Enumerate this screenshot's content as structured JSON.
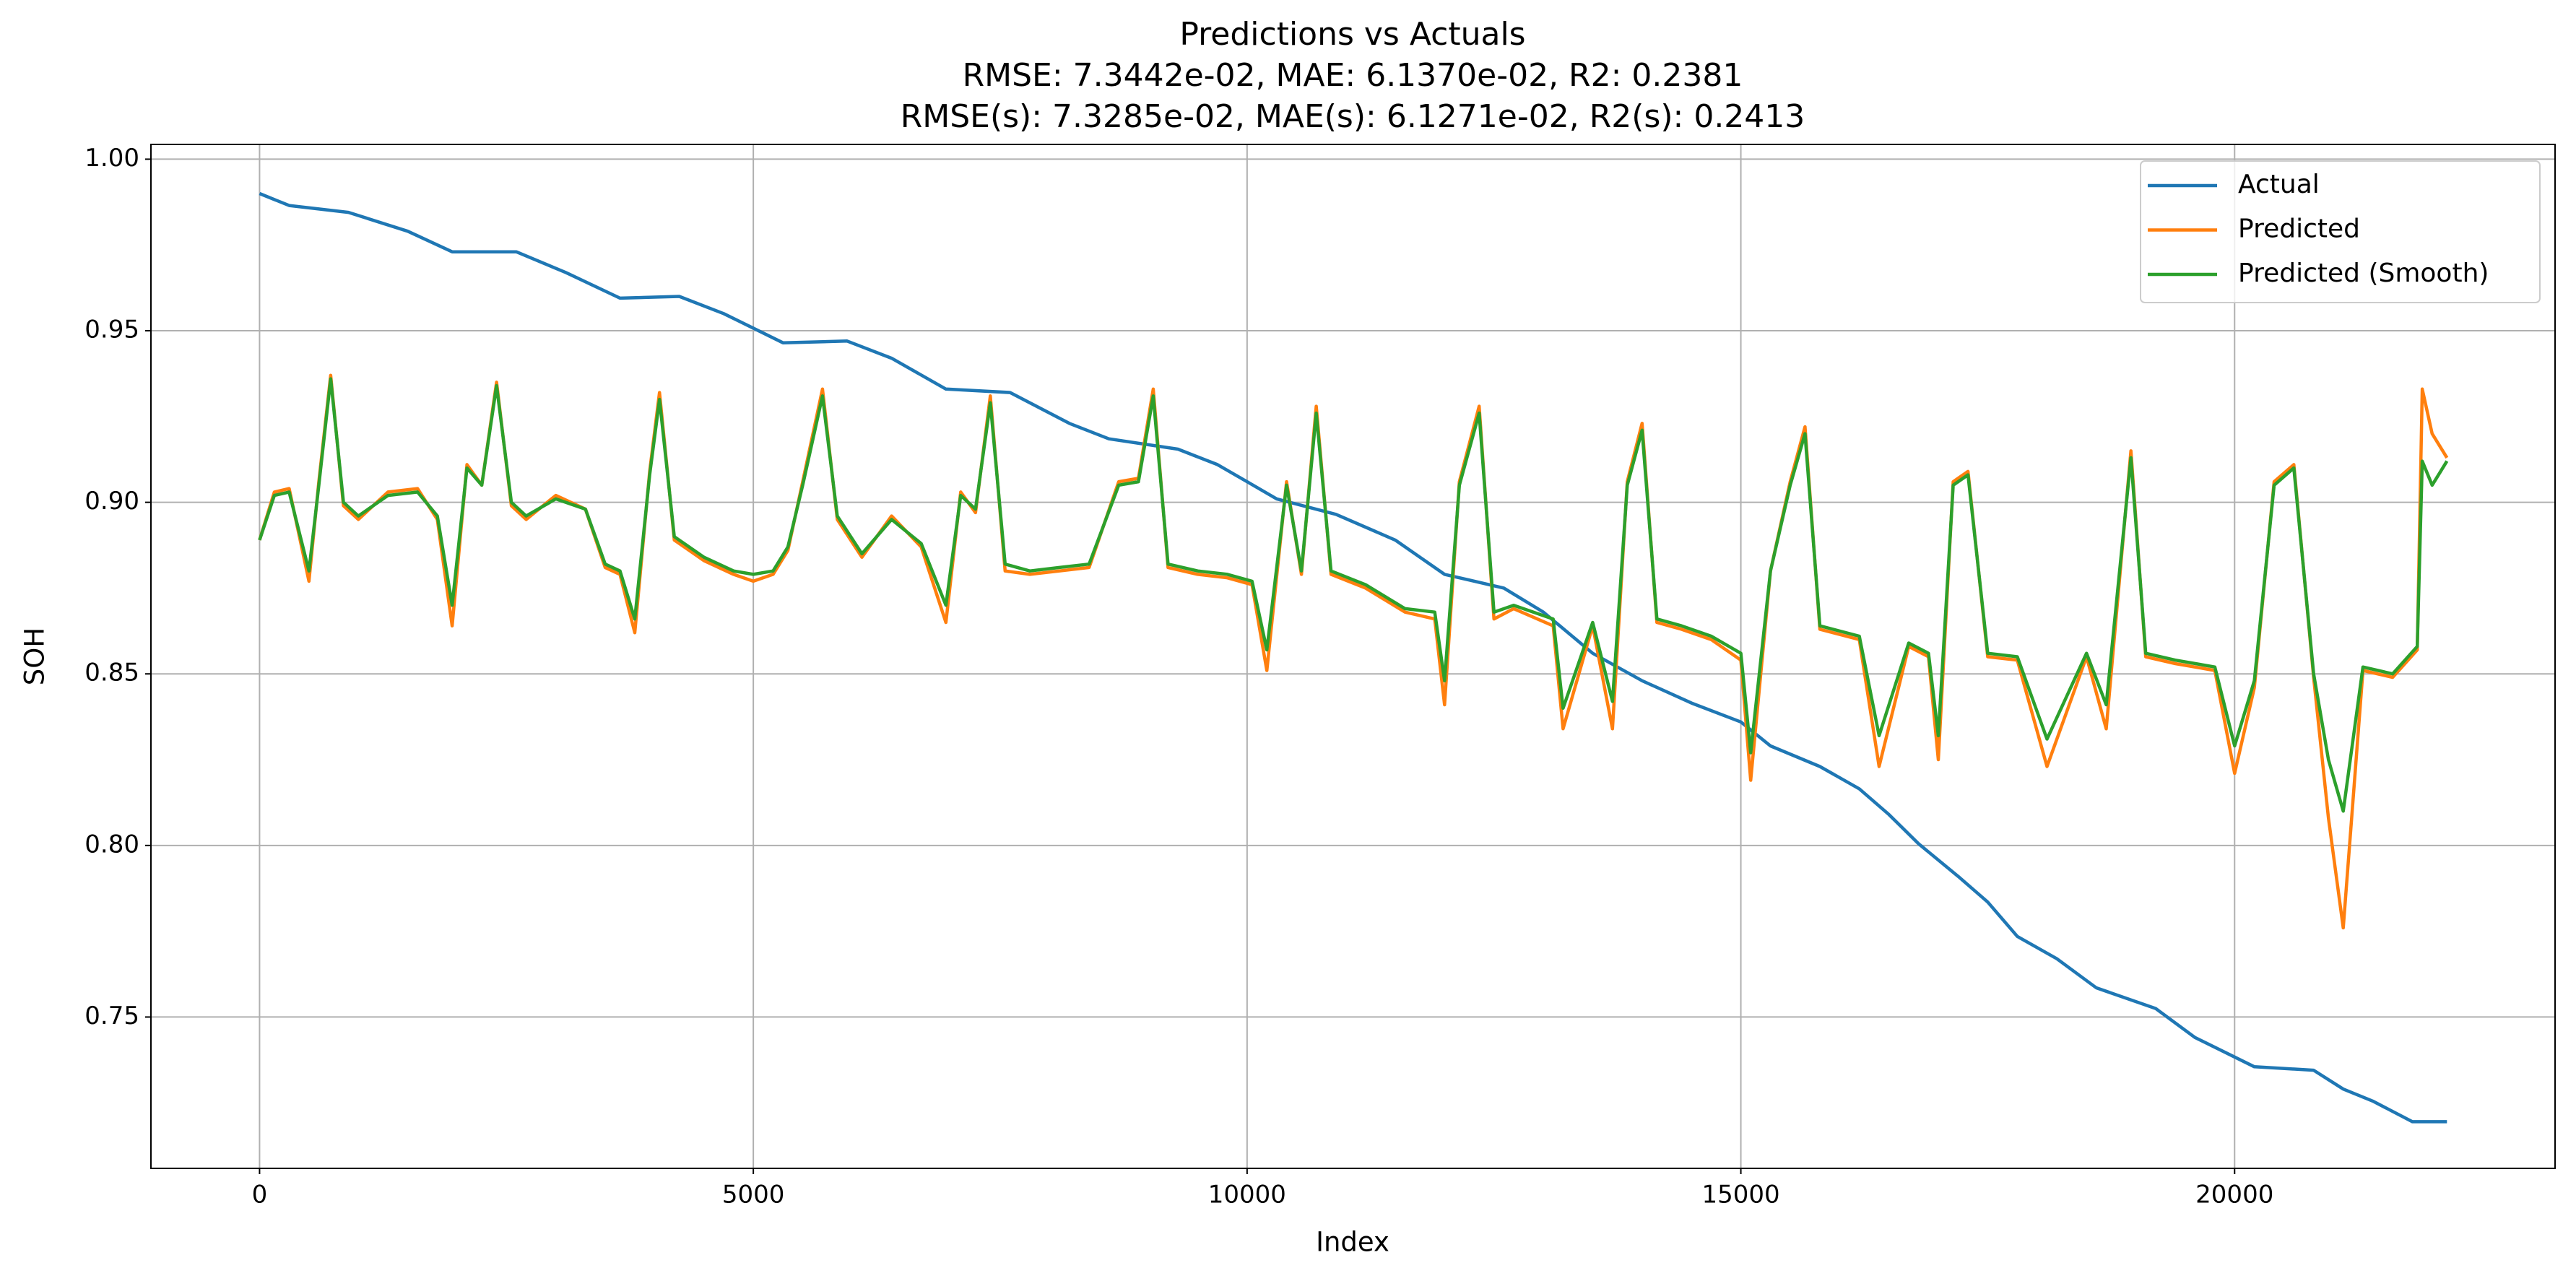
{
  "chart_data": {
    "type": "line",
    "title": "Predictions vs Actuals",
    "subtitle": [
      "RMSE: 7.3442e-02, MAE: 6.1370e-02, R2: 0.2381",
      "RMSE(s): 7.3285e-02, MAE(s): 6.1271e-02, R2(s): 0.2413"
    ],
    "x_label": "Index",
    "y_label": "SOH",
    "xlim": [
      -1100,
      23245
    ],
    "ylim": [
      0.7059,
      1.0043
    ],
    "xticks": [
      0,
      5000,
      10000,
      15000,
      20000
    ],
    "yticks": [
      0.75,
      {
        "value": 0.8,
        "label": "0.80"
      },
      0.85,
      {
        "value": 0.9,
        "label": "0.90"
      },
      0.95,
      {
        "value": 1.0,
        "label": "1.00"
      }
    ],
    "grid": true,
    "legend": "upper right",
    "series": [
      {
        "name": "Actual",
        "color": "#1f77b4",
        "x": [
          0,
          300,
          900,
          1500,
          1950,
          2600,
          3100,
          3650,
          4250,
          4700,
          5300,
          5950,
          6400,
          6950,
          7600,
          8200,
          8600,
          9300,
          9700,
          10000,
          10300,
          10900,
          11500,
          12000,
          12600,
          13000,
          13500,
          14000,
          14500,
          15000,
          15300,
          15800,
          16200,
          16500,
          16800,
          17200,
          17500,
          17800,
          18200,
          18600,
          19200,
          19600,
          20200,
          20800,
          21100,
          21400,
          21800,
          22150
        ],
        "values": [
          0.99,
          0.9865,
          0.9845,
          0.979,
          0.973,
          0.973,
          0.967,
          0.9595,
          0.96,
          0.955,
          0.9465,
          0.947,
          0.942,
          0.933,
          0.932,
          0.923,
          0.9185,
          0.9155,
          0.911,
          0.906,
          0.901,
          0.8965,
          0.889,
          0.879,
          0.875,
          0.868,
          0.856,
          0.848,
          0.8415,
          0.836,
          0.829,
          0.823,
          0.8165,
          0.809,
          0.8005,
          0.791,
          0.7835,
          0.7735,
          0.767,
          0.7585,
          0.7525,
          0.744,
          0.7355,
          0.7345,
          0.729,
          0.7255,
          0.7195,
          0.7195
        ]
      },
      {
        "name": "Predicted",
        "color": "#ff7f0e",
        "x": [
          0,
          150,
          300,
          500,
          600,
          720,
          850,
          1000,
          1300,
          1600,
          1800,
          1950,
          2100,
          2250,
          2400,
          2550,
          2700,
          3000,
          3300,
          3500,
          3650,
          3800,
          3950,
          4050,
          4200,
          4500,
          4800,
          5000,
          5200,
          5350,
          5500,
          5700,
          5850,
          6100,
          6400,
          6700,
          6950,
          7100,
          7250,
          7400,
          7550,
          7800,
          8100,
          8400,
          8700,
          8900,
          9050,
          9200,
          9500,
          9800,
          10050,
          10200,
          10400,
          10550,
          10700,
          10850,
          11200,
          11600,
          11900,
          12000,
          12150,
          12350,
          12500,
          12700,
          13100,
          13200,
          13500,
          13700,
          13850,
          14000,
          14150,
          14400,
          14700,
          15000,
          15100,
          15300,
          15500,
          15650,
          15800,
          16200,
          16400,
          16700,
          16900,
          17000,
          17150,
          17300,
          17500,
          17800,
          18100,
          18500,
          18700,
          18950,
          19100,
          19400,
          19800,
          20000,
          20200,
          20400,
          20600,
          20800,
          20950,
          21100,
          21300,
          21600,
          21850,
          21900,
          22000,
          22150
        ],
        "values": [
          0.889,
          0.903,
          0.904,
          0.877,
          0.906,
          0.937,
          0.899,
          0.895,
          0.903,
          0.904,
          0.895,
          0.864,
          0.911,
          0.905,
          0.935,
          0.899,
          0.895,
          0.902,
          0.898,
          0.881,
          0.879,
          0.862,
          0.909,
          0.932,
          0.889,
          0.883,
          0.879,
          0.877,
          0.879,
          0.886,
          0.906,
          0.933,
          0.895,
          0.884,
          0.896,
          0.887,
          0.865,
          0.903,
          0.897,
          0.931,
          0.88,
          0.879,
          0.88,
          0.881,
          0.906,
          0.907,
          0.933,
          0.881,
          0.879,
          0.878,
          0.876,
          0.851,
          0.906,
          0.879,
          0.928,
          0.879,
          0.875,
          0.868,
          0.866,
          0.841,
          0.906,
          0.928,
          0.866,
          0.869,
          0.864,
          0.834,
          0.864,
          0.834,
          0.906,
          0.923,
          0.865,
          0.863,
          0.86,
          0.854,
          0.819,
          0.88,
          0.906,
          0.922,
          0.863,
          0.86,
          0.823,
          0.858,
          0.855,
          0.825,
          0.906,
          0.909,
          0.855,
          0.854,
          0.823,
          0.855,
          0.834,
          0.915,
          0.855,
          0.853,
          0.851,
          0.821,
          0.846,
          0.906,
          0.911,
          0.849,
          0.808,
          0.776,
          0.851,
          0.849,
          0.857,
          0.933,
          0.92,
          0.913
        ]
      },
      {
        "name": "Predicted (Smooth)",
        "color": "#2ca02c",
        "x": [
          0,
          150,
          300,
          500,
          600,
          720,
          850,
          1000,
          1300,
          1600,
          1800,
          1950,
          2100,
          2250,
          2400,
          2550,
          2700,
          3000,
          3300,
          3500,
          3650,
          3800,
          3950,
          4050,
          4200,
          4500,
          4800,
          5000,
          5200,
          5350,
          5500,
          5700,
          5850,
          6100,
          6400,
          6700,
          6950,
          7100,
          7250,
          7400,
          7550,
          7800,
          8100,
          8400,
          8700,
          8900,
          9050,
          9200,
          9500,
          9800,
          10050,
          10200,
          10400,
          10550,
          10700,
          10850,
          11200,
          11600,
          11900,
          12000,
          12150,
          12350,
          12500,
          12700,
          13100,
          13200,
          13500,
          13700,
          13850,
          14000,
          14150,
          14400,
          14700,
          15000,
          15100,
          15300,
          15500,
          15650,
          15800,
          16200,
          16400,
          16700,
          16900,
          17000,
          17150,
          17300,
          17500,
          17800,
          18100,
          18500,
          18700,
          18950,
          19100,
          19400,
          19800,
          20000,
          20200,
          20400,
          20600,
          20800,
          20950,
          21100,
          21300,
          21600,
          21850,
          21900,
          22000,
          22150
        ],
        "values": [
          0.889,
          0.902,
          0.903,
          0.88,
          0.905,
          0.936,
          0.9,
          0.896,
          0.902,
          0.903,
          0.896,
          0.87,
          0.91,
          0.905,
          0.934,
          0.9,
          0.896,
          0.901,
          0.898,
          0.882,
          0.88,
          0.866,
          0.908,
          0.93,
          0.89,
          0.884,
          0.88,
          0.879,
          0.88,
          0.887,
          0.905,
          0.931,
          0.896,
          0.885,
          0.895,
          0.888,
          0.87,
          0.902,
          0.898,
          0.929,
          0.882,
          0.88,
          0.881,
          0.882,
          0.905,
          0.906,
          0.931,
          0.882,
          0.88,
          0.879,
          0.877,
          0.857,
          0.905,
          0.88,
          0.926,
          0.88,
          0.876,
          0.869,
          0.868,
          0.848,
          0.905,
          0.926,
          0.868,
          0.87,
          0.866,
          0.84,
          0.865,
          0.842,
          0.905,
          0.921,
          0.866,
          0.864,
          0.861,
          0.856,
          0.827,
          0.88,
          0.905,
          0.92,
          0.864,
          0.861,
          0.832,
          0.859,
          0.856,
          0.832,
          0.905,
          0.908,
          0.856,
          0.855,
          0.831,
          0.856,
          0.841,
          0.913,
          0.856,
          0.854,
          0.852,
          0.829,
          0.848,
          0.905,
          0.91,
          0.85,
          0.825,
          0.81,
          0.852,
          0.85,
          0.858,
          0.912,
          0.905,
          0.912
        ]
      }
    ]
  }
}
